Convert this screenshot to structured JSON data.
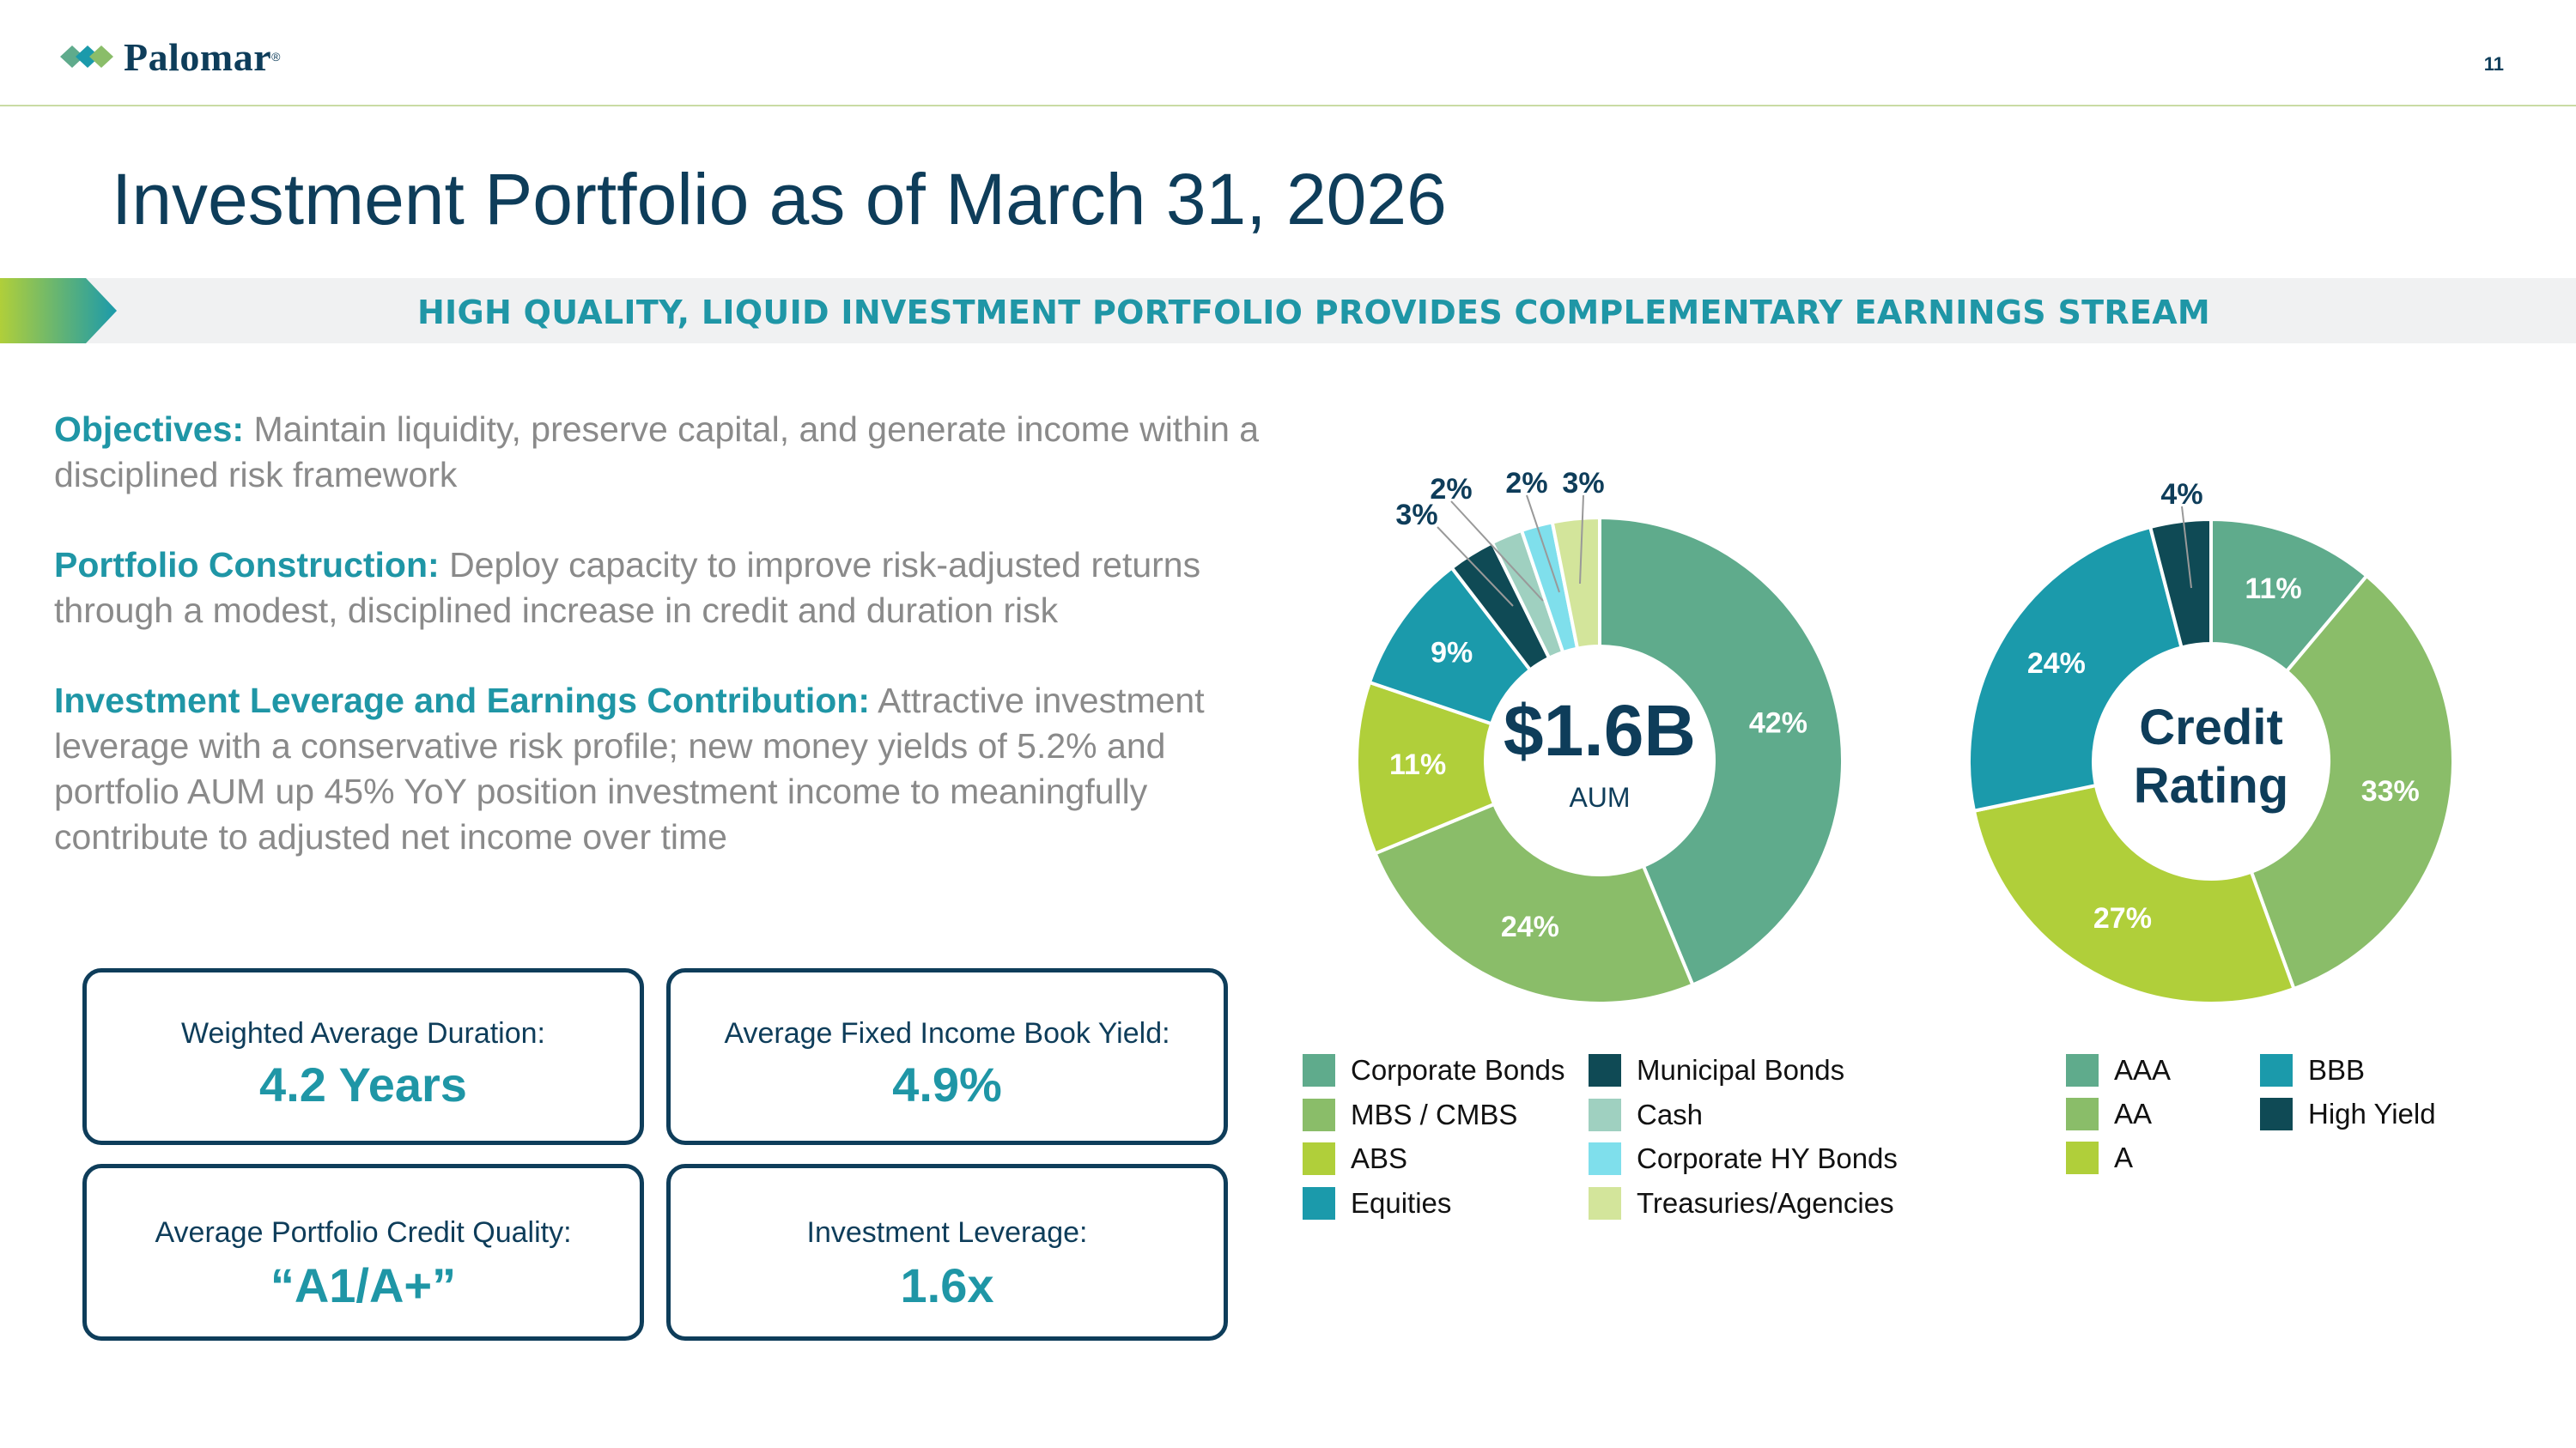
{
  "header": {
    "brand": "Palomar",
    "brand_mark": "®",
    "page_number": "11"
  },
  "title": "Investment Portfolio as of March 31, 2026",
  "banner": "HIGH QUALITY, LIQUID INVESTMENT PORTFOLIO PROVIDES COMPLEMENTARY EARNINGS STREAM",
  "paragraphs": [
    {
      "lead": "Objectives:",
      "text": " Maintain liquidity, preserve capital, and generate income within a disciplined risk framework"
    },
    {
      "lead": "Portfolio Construction:",
      "text": " Deploy capacity to improve risk-adjusted returns through a modest, disciplined increase in credit and duration risk"
    },
    {
      "lead": "Investment Leverage and Earnings Contribution:",
      "text": " Attractive investment leverage with a conservative risk profile; new money yields of 5.2% and portfolio AUM up 45% YoY position investment income to meaningfully contribute to adjusted net income over time"
    }
  ],
  "kpis": [
    {
      "label": "Weighted Average Duration:",
      "value": "4.2 Years"
    },
    {
      "label": "Average Fixed Income Book Yield:",
      "value": "4.9%"
    },
    {
      "label": "Average Portfolio Credit Quality:",
      "value": "“A1/A+”"
    },
    {
      "label": "Investment Leverage:",
      "value": "1.6x"
    }
  ],
  "chart_data": [
    {
      "type": "pie",
      "variant": "donut",
      "center_value": "$1.6B",
      "center_label": "AUM",
      "start": "12 o'clock, clockwise",
      "series": [
        {
          "name": "Corporate Bonds",
          "value": 42,
          "label": "42%",
          "color": "#5fab8c"
        },
        {
          "name": "MBS / CMBS",
          "value": 24,
          "label": "24%",
          "color": "#8abd69"
        },
        {
          "name": "ABS",
          "value": 11,
          "label": "11%",
          "color": "#b0cf3a"
        },
        {
          "name": "Equities",
          "value": 9,
          "label": "9%",
          "color": "#1b9aab"
        },
        {
          "name": "Municipal Bonds",
          "value": 3,
          "label": "3%",
          "color": "#0f4a55"
        },
        {
          "name": "Cash",
          "value": 2,
          "label": "2%",
          "color": "#9fd0c0"
        },
        {
          "name": "Corporate HY Bonds",
          "value": 2,
          "label": "2%",
          "color": "#7fdfec"
        },
        {
          "name": "Treasuries/Agencies",
          "value": 3,
          "label": "3%",
          "color": "#d3e59b"
        }
      ],
      "legend": {
        "placement": "bottom",
        "columns": [
          [
            "Corporate Bonds",
            "MBS / CMBS",
            "ABS",
            "Equities"
          ],
          [
            "Municipal Bonds",
            "Cash",
            "Corporate HY Bonds",
            "Treasuries/Agencies"
          ]
        ]
      }
    },
    {
      "type": "pie",
      "variant": "donut",
      "title": "Credit Rating",
      "start": "12 o'clock, clockwise",
      "series": [
        {
          "name": "AAA",
          "value": 11,
          "label": "11%",
          "color": "#5fab8c"
        },
        {
          "name": "AA",
          "value": 33,
          "label": "33%",
          "color": "#8abd69"
        },
        {
          "name": "A",
          "value": 27,
          "label": "27%",
          "color": "#b0cf3a"
        },
        {
          "name": "BBB",
          "value": 24,
          "label": "24%",
          "color": "#1b9aab"
        },
        {
          "name": "High Yield",
          "value": 4,
          "label": "4%",
          "color": "#0f4a55"
        }
      ],
      "legend": {
        "placement": "bottom",
        "columns": [
          [
            "AAA",
            "AA",
            "A"
          ],
          [
            "BBB",
            "High Yield"
          ]
        ]
      }
    }
  ]
}
